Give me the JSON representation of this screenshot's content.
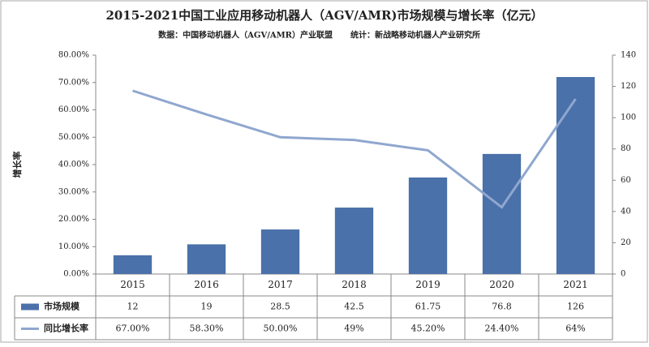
{
  "chart_data": {
    "type": "bar-line",
    "title": "2015-2021中国工业应用移动机器人（AGV/AMR)市场规模与增长率（亿元）",
    "source": "数据：中国移动机器人（AGV/AMR）产业联盟",
    "stat": "统计：新战略移动机器人产业研究所",
    "y_label": "增长率",
    "categories": [
      "2015",
      "2016",
      "2017",
      "2018",
      "2019",
      "2020",
      "2021"
    ],
    "series": [
      {
        "name": "市场规模",
        "type": "bar",
        "axis": "y2",
        "color": "#4a71a9",
        "values": [
          12,
          19,
          28.5,
          42.5,
          61.75,
          76.8,
          126
        ]
      },
      {
        "name": "同比增长率",
        "type": "line",
        "axis": "y",
        "color": "#8fa7cf",
        "values": [
          67,
          58.3,
          50,
          49,
          45.2,
          24.4,
          64
        ],
        "value_labels": [
          "67.00%",
          "58.30%",
          "50.00%",
          "49%",
          "45.20%",
          "24.40%",
          "64%"
        ]
      }
    ],
    "ylim": [
      0,
      80
    ],
    "yticks": [
      {
        "value": 0,
        "label": "0.00%"
      },
      {
        "value": 10,
        "label": "10.00%"
      },
      {
        "value": 20,
        "label": "20.00%"
      },
      {
        "value": 30,
        "label": "30.00%"
      },
      {
        "value": 40,
        "label": "40.00%"
      },
      {
        "value": 50,
        "label": "50.00%"
      },
      {
        "value": 60,
        "label": "60.00%"
      },
      {
        "value": 70,
        "label": "70.00%"
      },
      {
        "value": 80,
        "label": "80.00%"
      }
    ],
    "y2lim": [
      0,
      140
    ],
    "y2ticks": [
      0,
      20,
      40,
      60,
      80,
      100,
      120,
      140
    ],
    "grid": false
  }
}
